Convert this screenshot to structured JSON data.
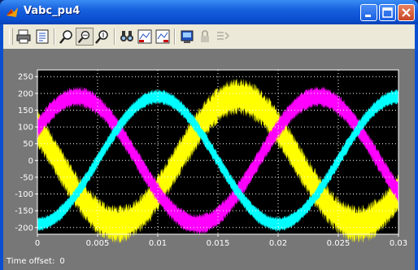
{
  "window": {
    "title": "Vabc_pu4"
  },
  "toolbar": [
    {
      "name": "print-icon"
    },
    {
      "name": "parameters-icon"
    },
    {
      "name": "zoom-icon"
    },
    {
      "name": "zoom-x-icon"
    },
    {
      "name": "zoom-y-icon"
    },
    {
      "name": "autoscale-icon"
    },
    {
      "name": "save-axes-icon"
    },
    {
      "name": "restore-axes-icon"
    },
    {
      "name": "floating-scope-icon"
    },
    {
      "name": "lock-icon"
    },
    {
      "name": "signal-selection-icon"
    }
  ],
  "colors": {
    "phase_a": "#ffff00",
    "phase_b": "#ff00ff",
    "phase_c": "#00ffff",
    "axis": "#ffffff",
    "plot_bg": "#000000",
    "frame_bg": "#777777"
  },
  "status": {
    "label": "Time offset:",
    "value": "0"
  },
  "chart_data": {
    "type": "line",
    "x_unit": "s",
    "xlim": [
      0,
      0.03
    ],
    "ylim": [
      -220,
      270
    ],
    "xticks": [
      0,
      0.005,
      0.01,
      0.015,
      0.02,
      0.025,
      0.03
    ],
    "yticks": [
      -200,
      -150,
      -100,
      -50,
      0,
      50,
      100,
      150,
      200,
      250
    ],
    "grid": true,
    "series": [
      {
        "color": "#ffff00",
        "amplitude": 190,
        "frequency_hz": 50,
        "phase_deg": 150,
        "ripple": 45
      },
      {
        "color": "#ff00ff",
        "amplitude": 190,
        "frequency_hz": 50,
        "phase_deg": 30,
        "ripple": 25
      },
      {
        "color": "#00ffff",
        "amplitude": 190,
        "frequency_hz": 50,
        "phase_deg": -90,
        "ripple": 18
      }
    ]
  }
}
